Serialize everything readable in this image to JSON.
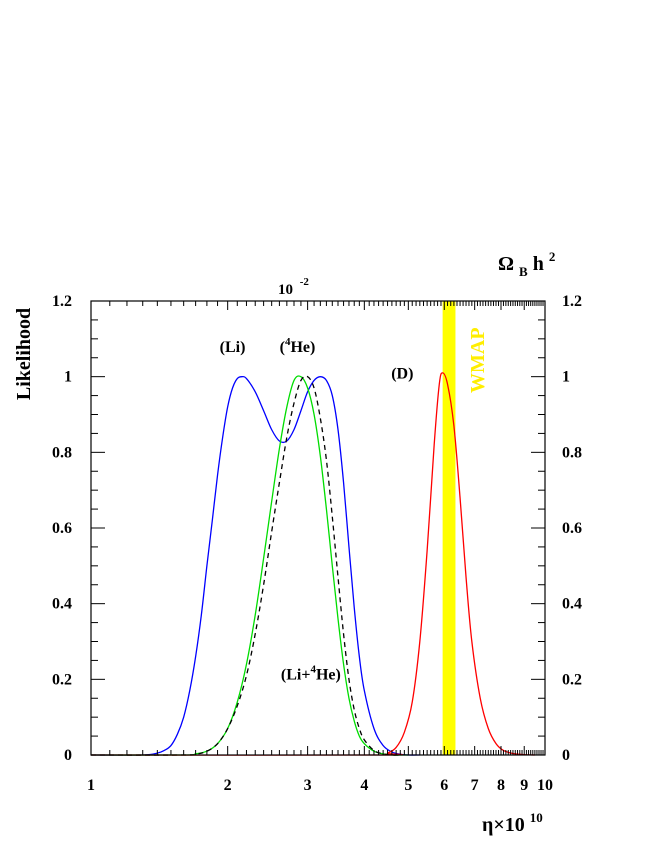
{
  "chart_data": {
    "type": "line",
    "xscale": "log",
    "xlim": [
      1,
      10
    ],
    "ylim": [
      0,
      1.2
    ],
    "grid": false,
    "xlabel_main": "η×10",
    "xlabel_exp": "10",
    "ylabel": "Likelihood",
    "top_axis_label_base": "10",
    "top_axis_label_exp": "-2",
    "right_axis_label_main": "Ω",
    "right_axis_label_sub": "B",
    "right_axis_label_tail": "h",
    "right_axis_label_sup": "2",
    "x_ticks": [
      {
        "value": 1,
        "label": "1"
      },
      {
        "value": 2,
        "label": "2"
      },
      {
        "value": 3,
        "label": "3"
      },
      {
        "value": 4,
        "label": "4"
      },
      {
        "value": 5,
        "label": "5"
      },
      {
        "value": 6,
        "label": "6"
      },
      {
        "value": 7,
        "label": "7"
      },
      {
        "value": 8,
        "label": "8"
      },
      {
        "value": 9,
        "label": "9"
      },
      {
        "value": 10,
        "label": "10"
      }
    ],
    "y_ticks": [
      {
        "value": 0,
        "label": "0"
      },
      {
        "value": 0.2,
        "label": "0.2"
      },
      {
        "value": 0.4,
        "label": "0.4"
      },
      {
        "value": 0.6,
        "label": "0.6"
      },
      {
        "value": 0.8,
        "label": "0.8"
      },
      {
        "value": 1.0,
        "label": "1"
      },
      {
        "value": 1.2,
        "label": "1.2"
      }
    ],
    "band": {
      "label": "WMAP",
      "x_min": 5.95,
      "x_max": 6.35,
      "color": "#ffff00"
    },
    "series": [
      {
        "name": "(Li)",
        "color": "#0000ff",
        "dash": "",
        "label_x": 2.05,
        "label_y": 1.065,
        "x": [
          1.0,
          1.3,
          1.4,
          1.45,
          1.5,
          1.55,
          1.6,
          1.65,
          1.7,
          1.75,
          1.8,
          1.85,
          1.9,
          1.95,
          2.0,
          2.05,
          2.1,
          2.15,
          2.2,
          2.3,
          2.4,
          2.5,
          2.6,
          2.7,
          2.8,
          2.9,
          3.0,
          3.1,
          3.2,
          3.3,
          3.4,
          3.5,
          3.6,
          3.7,
          3.8,
          3.9,
          4.0,
          4.2,
          4.4,
          4.6,
          4.8,
          5.0,
          5.3
        ],
        "y": [
          0.0,
          0.0,
          0.005,
          0.012,
          0.025,
          0.055,
          0.1,
          0.17,
          0.26,
          0.37,
          0.5,
          0.62,
          0.74,
          0.84,
          0.92,
          0.97,
          0.995,
          1.0,
          0.995,
          0.96,
          0.91,
          0.86,
          0.83,
          0.83,
          0.86,
          0.91,
          0.96,
          0.99,
          1.0,
          0.99,
          0.95,
          0.86,
          0.72,
          0.55,
          0.39,
          0.26,
          0.17,
          0.07,
          0.025,
          0.008,
          0.002,
          0.0,
          0.0
        ]
      },
      {
        "name": "(4He)",
        "color": "#00dd00",
        "dash": "",
        "label_x": 2.85,
        "label_y": 1.065,
        "x": [
          1.0,
          1.6,
          1.7,
          1.8,
          1.9,
          2.0,
          2.1,
          2.2,
          2.3,
          2.4,
          2.5,
          2.6,
          2.7,
          2.8,
          2.9,
          3.0,
          3.1,
          3.2,
          3.3,
          3.4,
          3.5,
          3.6,
          3.7,
          3.8,
          3.9,
          4.0,
          4.2,
          4.4,
          4.6,
          4.8,
          5.0
        ],
        "y": [
          0.0,
          0.0,
          0.003,
          0.01,
          0.03,
          0.07,
          0.14,
          0.24,
          0.37,
          0.52,
          0.67,
          0.81,
          0.92,
          0.99,
          1.0,
          0.97,
          0.9,
          0.79,
          0.65,
          0.5,
          0.36,
          0.24,
          0.15,
          0.09,
          0.05,
          0.03,
          0.01,
          0.003,
          0.0,
          0.0,
          0.0
        ]
      },
      {
        "name": "(Li+4He)",
        "color": "#000000",
        "dash": "5,4",
        "label_x": 3.05,
        "label_y": 0.2,
        "x": [
          1.0,
          1.6,
          1.7,
          1.8,
          1.9,
          2.0,
          2.1,
          2.2,
          2.3,
          2.4,
          2.5,
          2.6,
          2.7,
          2.8,
          2.9,
          3.0,
          3.1,
          3.2,
          3.3,
          3.4,
          3.5,
          3.6,
          3.7,
          3.8,
          3.9,
          4.0,
          4.2,
          4.4,
          4.6,
          4.8
        ],
        "y": [
          0.0,
          0.0,
          0.002,
          0.01,
          0.03,
          0.07,
          0.13,
          0.21,
          0.32,
          0.45,
          0.59,
          0.72,
          0.84,
          0.93,
          0.99,
          1.0,
          0.97,
          0.89,
          0.78,
          0.63,
          0.47,
          0.32,
          0.2,
          0.12,
          0.07,
          0.04,
          0.012,
          0.003,
          0.0,
          0.0
        ]
      },
      {
        "name": "(D)",
        "color": "#ff0000",
        "dash": "",
        "label_x": 4.85,
        "label_y": 0.995,
        "x": [
          1.0,
          4.3,
          4.5,
          4.7,
          4.9,
          5.1,
          5.3,
          5.5,
          5.7,
          5.85,
          5.95,
          6.1,
          6.3,
          6.5,
          6.7,
          6.9,
          7.2,
          7.5,
          7.8,
          8.1,
          8.5,
          9.0,
          9.5
        ],
        "y": [
          0.0,
          0.0,
          0.005,
          0.02,
          0.06,
          0.14,
          0.3,
          0.54,
          0.82,
          0.98,
          1.01,
          0.98,
          0.87,
          0.68,
          0.47,
          0.3,
          0.15,
          0.07,
          0.03,
          0.012,
          0.004,
          0.001,
          0.0
        ]
      }
    ]
  }
}
